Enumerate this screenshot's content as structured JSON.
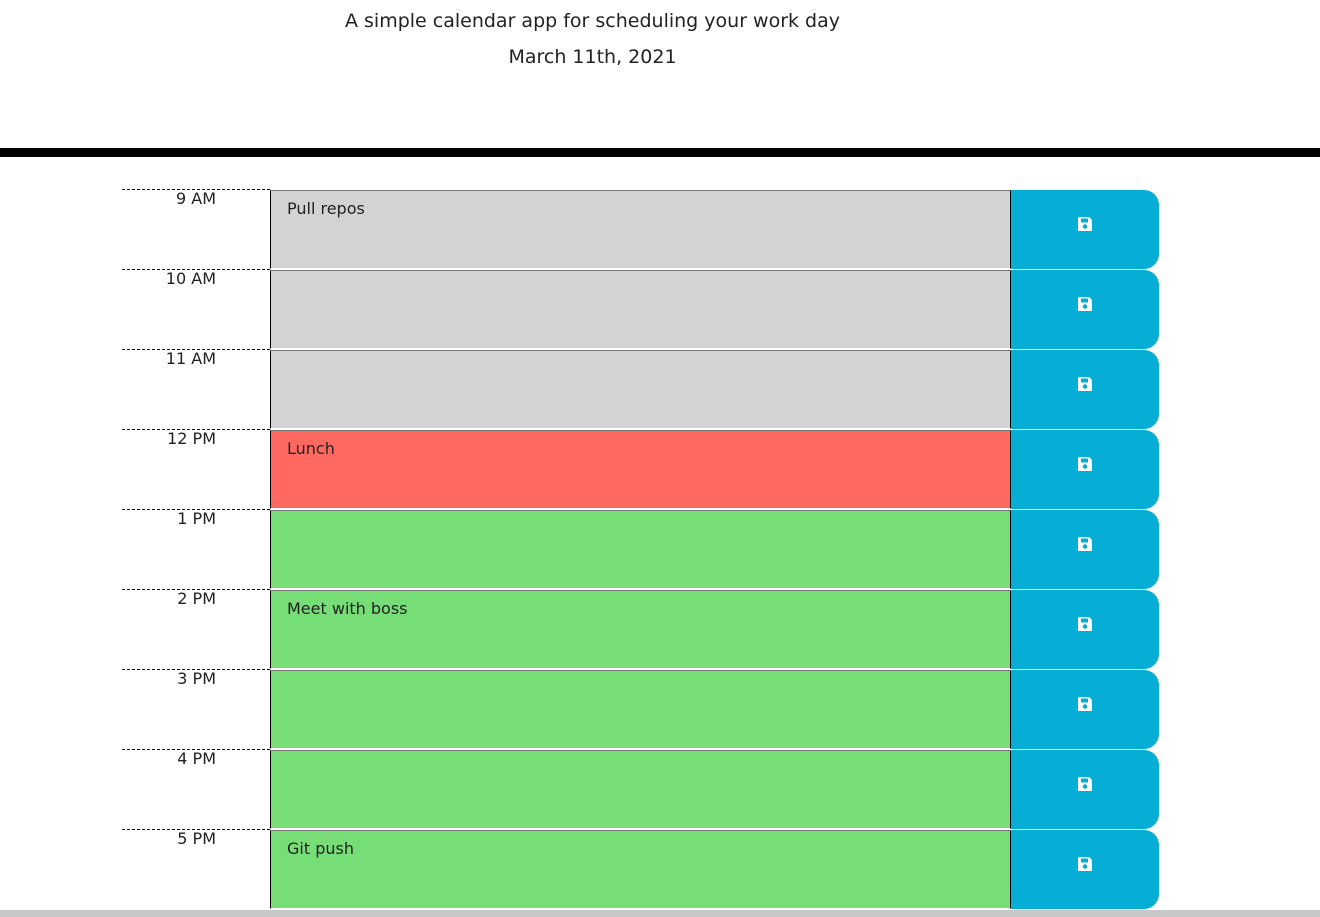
{
  "header": {
    "subtitle": "A simple calendar app for scheduling your work day",
    "date": "March 11th, 2021"
  },
  "colors": {
    "past": "#d3d3d3",
    "present": "#ff6961",
    "future": "#77dd77",
    "save_button": "#06aed5",
    "divider": "#000000"
  },
  "time_blocks": [
    {
      "hour": "9 AM",
      "text": "Pull repos",
      "state": "past"
    },
    {
      "hour": "10 AM",
      "text": "",
      "state": "past"
    },
    {
      "hour": "11 AM",
      "text": "",
      "state": "past"
    },
    {
      "hour": "12 PM",
      "text": "Lunch",
      "state": "present"
    },
    {
      "hour": "1 PM",
      "text": "",
      "state": "future"
    },
    {
      "hour": "2 PM",
      "text": "Meet with boss",
      "state": "future"
    },
    {
      "hour": "3 PM",
      "text": "",
      "state": "future"
    },
    {
      "hour": "4 PM",
      "text": "",
      "state": "future"
    },
    {
      "hour": "5 PM",
      "text": "Git push",
      "state": "future"
    }
  ],
  "save_icon": "floppy-disk-icon"
}
